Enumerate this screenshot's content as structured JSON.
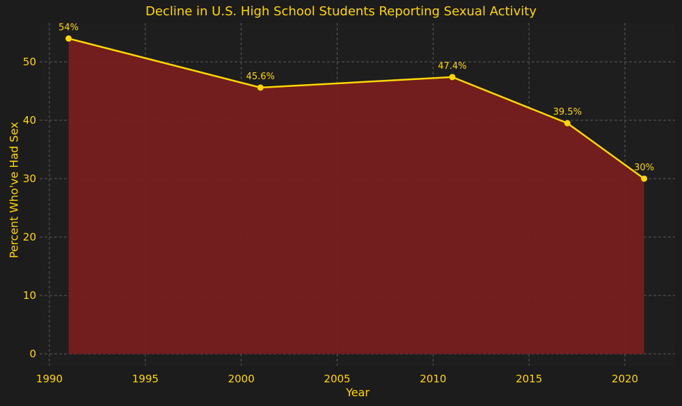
{
  "chart_data": {
    "type": "area",
    "title": "Decline in U.S. High School Students Reporting Sexual Activity",
    "xlabel": "Year",
    "ylabel": "Percent Who've Had Sex",
    "x": [
      1991,
      2001,
      2011,
      2017,
      2021
    ],
    "values": [
      54,
      45.6,
      47.4,
      39.5,
      30
    ],
    "point_labels": [
      "54%",
      "45.6%",
      "47.4%",
      "39.5%",
      "30%"
    ],
    "xticks": [
      1990,
      1995,
      2000,
      2005,
      2010,
      2015,
      2020
    ],
    "yticks": [
      0,
      10,
      20,
      30,
      40,
      50
    ],
    "xlim": [
      1989.5,
      2022.6
    ],
    "ylim": [
      -2.0,
      56.7
    ],
    "grid": true,
    "legend": null
  },
  "colors": {
    "background": "#1c1c1c",
    "text": "#ffd700",
    "line": "#ffd700",
    "fill": "#771f1f",
    "grid": "#5a5a5a"
  }
}
